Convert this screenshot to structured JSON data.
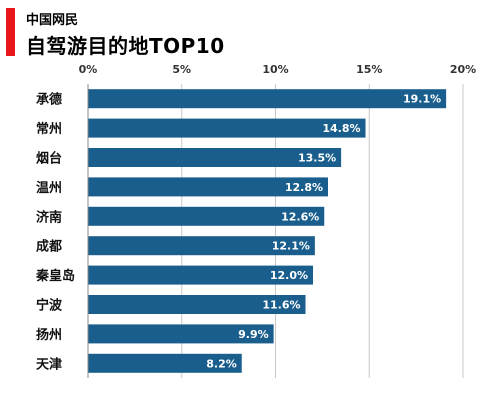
{
  "header": {
    "subtitle": "中国网民",
    "title": "自驾游目的地TOP10"
  },
  "colors": {
    "accent": "#e8161b",
    "bar": "#1a5e8d",
    "grid": "#c8c8c8"
  },
  "chart_data": {
    "type": "bar",
    "orientation": "horizontal",
    "categories": [
      "承德",
      "常州",
      "烟台",
      "温州",
      "济南",
      "成都",
      "秦皇岛",
      "宁波",
      "扬州",
      "天津"
    ],
    "values": [
      19.1,
      14.8,
      13.5,
      12.8,
      12.6,
      12.1,
      12.0,
      11.6,
      9.9,
      8.2
    ],
    "value_labels": [
      "19.1%",
      "14.8%",
      "13.5%",
      "12.8%",
      "12.6%",
      "12.1%",
      "12.0%",
      "11.6%",
      "9.9%",
      "8.2%"
    ],
    "x_ticks": [
      "0%",
      "5%",
      "10%",
      "15%",
      "20%"
    ],
    "xlim": [
      0,
      20
    ],
    "grid": true,
    "axis_position": "top"
  }
}
